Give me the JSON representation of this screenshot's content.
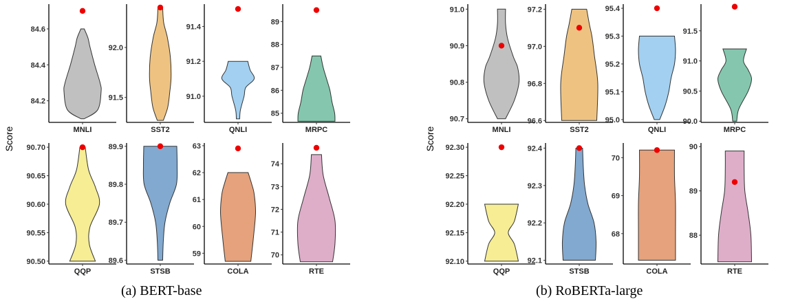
{
  "captions": {
    "a": "(a) BERT-base",
    "b": "(b) RoBERTa-large"
  },
  "y_axis_label": "Score",
  "colors": {
    "MNLI": "#c0c0c0",
    "SST2": "#eec382",
    "QNLI": "#a3d0f0",
    "MRPC": "#84c7ae",
    "QQP": "#f6ed95",
    "STSB": "#82a9cf",
    "COLA": "#e5a27c",
    "RTE": "#deaec9",
    "point": "#ee0000"
  },
  "chart_data": [
    {
      "type": "violin",
      "title": "(a) BERT-base",
      "ylabel": "Score",
      "panels": [
        {
          "task": "MNLI",
          "ylim": [
            84.08,
            84.73
          ],
          "ticks": [
            84.2,
            84.4,
            84.6
          ],
          "tick_labels": [
            "84.2",
            "84.4",
            "84.6"
          ],
          "violin": [
            [
              84.1,
              0.05
            ],
            [
              84.15,
              0.45
            ],
            [
              84.25,
              0.55
            ],
            [
              84.3,
              0.52
            ],
            [
              84.4,
              0.36
            ],
            [
              84.5,
              0.22
            ],
            [
              84.55,
              0.16
            ],
            [
              84.6,
              0.05
            ]
          ],
          "point": 84.7
        },
        {
          "task": "SST2",
          "ylim": [
            91.25,
            92.42
          ],
          "ticks": [
            91.5,
            92.0
          ],
          "tick_labels": [
            "91.5",
            "92.0"
          ],
          "violin": [
            [
              91.27,
              0.09
            ],
            [
              91.4,
              0.22
            ],
            [
              91.55,
              0.28
            ],
            [
              91.7,
              0.32
            ],
            [
              91.9,
              0.3
            ],
            [
              92.1,
              0.21
            ],
            [
              92.25,
              0.1
            ],
            [
              92.4,
              0.07
            ]
          ],
          "point": 92.4
        },
        {
          "task": "QNLI",
          "ylim": [
            90.85,
            91.52
          ],
          "ticks": [
            91.0,
            91.2,
            91.4
          ],
          "tick_labels": [
            "91.0",
            "91.2",
            "91.4"
          ],
          "violin": [
            [
              90.87,
              0.05
            ],
            [
              90.92,
              0.07
            ],
            [
              91.0,
              0.18
            ],
            [
              91.05,
              0.23
            ],
            [
              91.1,
              0.48
            ],
            [
              91.15,
              0.36
            ],
            [
              91.2,
              0.29
            ]
          ],
          "point": 91.5
        },
        {
          "task": "MRPC",
          "ylim": [
            84.6,
            89.7
          ],
          "ticks": [
            85,
            86,
            87,
            88,
            89
          ],
          "tick_labels": [
            "85",
            "86",
            "87",
            "88",
            "89"
          ],
          "violin": [
            [
              84.65,
              0.55
            ],
            [
              85.0,
              0.54
            ],
            [
              85.5,
              0.46
            ],
            [
              86.0,
              0.4
            ],
            [
              86.5,
              0.3
            ],
            [
              87.0,
              0.2
            ],
            [
              87.5,
              0.13
            ]
          ],
          "point": 89.5
        },
        {
          "task": "QQP",
          "ylim": [
            90.495,
            90.705
          ],
          "ticks": [
            90.5,
            90.55,
            90.6,
            90.65,
            90.7
          ],
          "tick_labels": [
            "90.50",
            "90.55",
            "90.60",
            "90.65",
            "90.70"
          ],
          "violin": [
            [
              90.5,
              0.38
            ],
            [
              90.53,
              0.2
            ],
            [
              90.56,
              0.22
            ],
            [
              90.6,
              0.5
            ],
            [
              90.63,
              0.38
            ],
            [
              90.66,
              0.18
            ],
            [
              90.7,
              0.08
            ]
          ],
          "point": 90.7
        },
        {
          "task": "STSB",
          "ylim": [
            89.59,
            89.905
          ],
          "ticks": [
            89.6,
            89.7,
            89.8,
            89.9
          ],
          "tick_labels": [
            "89.6",
            "89.7",
            "89.8",
            "89.9"
          ],
          "violin": [
            [
              89.6,
              0.07
            ],
            [
              89.65,
              0.09
            ],
            [
              89.7,
              0.14
            ],
            [
              89.75,
              0.28
            ],
            [
              89.8,
              0.48
            ],
            [
              89.85,
              0.5
            ],
            [
              89.9,
              0.49
            ]
          ],
          "point": 89.9
        },
        {
          "task": "COLA",
          "ylim": [
            58.6,
            63.05
          ],
          "ticks": [
            59,
            60,
            61,
            62,
            63
          ],
          "tick_labels": [
            "59",
            "60",
            "61",
            "62",
            "63"
          ],
          "violin": [
            [
              58.7,
              0.38
            ],
            [
              59.5,
              0.45
            ],
            [
              60.5,
              0.52
            ],
            [
              61.2,
              0.48
            ],
            [
              61.6,
              0.4
            ],
            [
              62.0,
              0.3
            ]
          ],
          "point": 62.9
        },
        {
          "task": "RTE",
          "ylim": [
            69.6,
            74.85
          ],
          "ticks": [
            70,
            71,
            72,
            73,
            74
          ],
          "tick_labels": [
            "70",
            "71",
            "72",
            "73",
            "74"
          ],
          "violin": [
            [
              69.7,
              0.48
            ],
            [
              70.5,
              0.55
            ],
            [
              71.5,
              0.55
            ],
            [
              72.5,
              0.38
            ],
            [
              73.5,
              0.2
            ],
            [
              74.4,
              0.15
            ]
          ],
          "point": 74.7
        }
      ]
    },
    {
      "type": "violin",
      "title": "(b) RoBERTa-large",
      "ylabel": "Score",
      "panels": [
        {
          "task": "MNLI",
          "ylim": [
            90.69,
            91.01
          ],
          "ticks": [
            90.7,
            90.8,
            90.9,
            91.0
          ],
          "tick_labels": [
            "90.7",
            "90.8",
            "90.9",
            "91.0"
          ],
          "violin": [
            [
              90.7,
              0.12
            ],
            [
              90.75,
              0.38
            ],
            [
              90.8,
              0.52
            ],
            [
              90.84,
              0.48
            ],
            [
              90.87,
              0.35
            ],
            [
              90.92,
              0.18
            ],
            [
              90.96,
              0.12
            ],
            [
              91.0,
              0.12
            ]
          ],
          "point": 90.9
        },
        {
          "task": "SST2",
          "ylim": [
            96.59,
            97.22
          ],
          "ticks": [
            96.6,
            96.8,
            97.0,
            97.2
          ],
          "tick_labels": [
            "96.6",
            "96.8",
            "97.0",
            "97.2"
          ],
          "violin": [
            [
              96.6,
              0.52
            ],
            [
              96.8,
              0.55
            ],
            [
              96.95,
              0.45
            ],
            [
              97.05,
              0.38
            ],
            [
              97.12,
              0.3
            ],
            [
              97.2,
              0.22
            ]
          ],
          "point": 97.1
        },
        {
          "task": "QNLI",
          "ylim": [
            94.99,
            95.41
          ],
          "ticks": [
            95.0,
            95.1,
            95.2,
            95.3,
            95.4
          ],
          "tick_labels": [
            "95.0",
            "95.1",
            "95.2",
            "95.3",
            "95.4"
          ],
          "violin": [
            [
              95.0,
              0.08
            ],
            [
              95.05,
              0.24
            ],
            [
              95.1,
              0.35
            ],
            [
              95.15,
              0.42
            ],
            [
              95.2,
              0.52
            ],
            [
              95.25,
              0.55
            ],
            [
              95.3,
              0.52
            ]
          ],
          "point": 95.4
        },
        {
          "task": "MRPC",
          "ylim": [
            89.98,
            91.92
          ],
          "ticks": [
            90.0,
            90.5,
            91.0,
            91.5
          ],
          "tick_labels": [
            "90.0",
            "90.5",
            "91.0",
            "91.5"
          ],
          "violin": [
            [
              90.0,
              0.06
            ],
            [
              90.2,
              0.12
            ],
            [
              90.5,
              0.4
            ],
            [
              90.7,
              0.5
            ],
            [
              90.85,
              0.4
            ],
            [
              91.0,
              0.26
            ],
            [
              91.2,
              0.35
            ]
          ],
          "point": 91.9
        },
        {
          "task": "QQP",
          "ylim": [
            92.095,
            92.305
          ],
          "ticks": [
            92.1,
            92.15,
            92.2,
            92.25,
            92.3
          ],
          "tick_labels": [
            "92.10",
            "92.15",
            "92.20",
            "92.25",
            "92.30"
          ],
          "violin": [
            [
              92.1,
              0.5
            ],
            [
              92.13,
              0.38
            ],
            [
              92.15,
              0.2
            ],
            [
              92.17,
              0.38
            ],
            [
              92.2,
              0.5
            ]
          ],
          "point": 92.3
        },
        {
          "task": "STSB",
          "ylim": [
            92.09,
            92.41
          ],
          "ticks": [
            92.1,
            92.2,
            92.3,
            92.4
          ],
          "tick_labels": [
            "92.1",
            "92.2",
            "92.3",
            "92.4"
          ],
          "violin": [
            [
              92.1,
              0.48
            ],
            [
              92.15,
              0.5
            ],
            [
              92.2,
              0.44
            ],
            [
              92.25,
              0.26
            ],
            [
              92.3,
              0.16
            ],
            [
              92.35,
              0.12
            ],
            [
              92.4,
              0.1
            ]
          ],
          "point": 92.4
        },
        {
          "task": "COLA",
          "ylim": [
            67.2,
            70.35
          ],
          "ticks": [
            68,
            69,
            70
          ],
          "tick_labels": [
            "68",
            "69",
            "70"
          ],
          "violin": [
            [
              67.3,
              0.55
            ],
            [
              68.0,
              0.55
            ],
            [
              68.8,
              0.55
            ],
            [
              69.5,
              0.52
            ],
            [
              70.2,
              0.52
            ]
          ],
          "point": 70.2
        },
        {
          "task": "RTE",
          "ylim": [
            87.35,
            90.05
          ],
          "ticks": [
            88,
            89,
            90
          ],
          "tick_labels": [
            "88",
            "89",
            "90"
          ],
          "violin": [
            [
              87.4,
              0.5
            ],
            [
              88.0,
              0.48
            ],
            [
              88.5,
              0.4
            ],
            [
              89.0,
              0.3
            ],
            [
              89.5,
              0.28
            ],
            [
              89.9,
              0.28
            ]
          ],
          "point": 89.2
        }
      ]
    }
  ]
}
